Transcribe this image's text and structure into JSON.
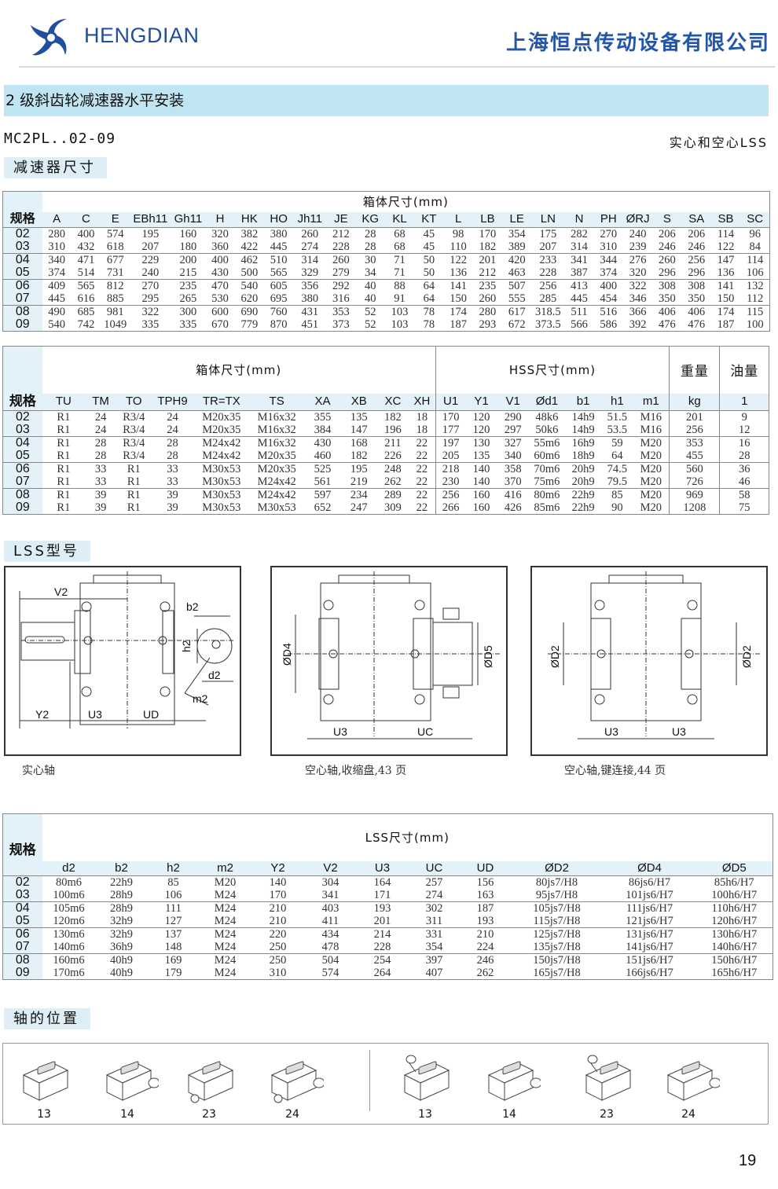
{
  "header": {
    "brand": "HENGDIAN",
    "company": "上海恒点传动设备有限公司",
    "logo_color": "#1f4f9e"
  },
  "section_title": "2 级斜齿轮减速器水平安装",
  "model": "MC2PL..02-09",
  "shaft_type": "实心和空心LSS",
  "tag_dims": "减速器尺寸",
  "tag_lss": "LSS型号",
  "tag_pos": "轴的位置",
  "table1": {
    "spec_label": "规格",
    "group": "箱体尺寸(mm)",
    "columns": [
      "A",
      "C",
      "E",
      "EBh11",
      "Gh11",
      "H",
      "HK",
      "HO",
      "Jh11",
      "JE",
      "KG",
      "KL",
      "KT",
      "L",
      "LB",
      "LE",
      "LN",
      "N",
      "PH",
      "ØRJ",
      "S",
      "SA",
      "SB",
      "SC"
    ],
    "rows": [
      [
        "02",
        "280",
        "400",
        "574",
        "195",
        "160",
        "320",
        "382",
        "380",
        "260",
        "212",
        "28",
        "68",
        "45",
        "98",
        "170",
        "354",
        "175",
        "282",
        "270",
        "240",
        "206",
        "206",
        "114",
        "96"
      ],
      [
        "03",
        "310",
        "432",
        "618",
        "207",
        "180",
        "360",
        "422",
        "445",
        "274",
        "228",
        "28",
        "68",
        "45",
        "110",
        "182",
        "389",
        "207",
        "314",
        "310",
        "239",
        "246",
        "246",
        "122",
        "84"
      ],
      [
        "04",
        "340",
        "471",
        "677",
        "229",
        "200",
        "400",
        "462",
        "510",
        "314",
        "260",
        "30",
        "71",
        "50",
        "122",
        "201",
        "420",
        "233",
        "341",
        "344",
        "276",
        "260",
        "256",
        "147",
        "114"
      ],
      [
        "05",
        "374",
        "514",
        "731",
        "240",
        "215",
        "430",
        "500",
        "565",
        "329",
        "279",
        "34",
        "71",
        "50",
        "136",
        "212",
        "463",
        "228",
        "387",
        "374",
        "320",
        "296",
        "296",
        "136",
        "106"
      ],
      [
        "06",
        "409",
        "565",
        "812",
        "270",
        "235",
        "470",
        "540",
        "605",
        "356",
        "292",
        "40",
        "88",
        "64",
        "141",
        "235",
        "507",
        "256",
        "413",
        "400",
        "322",
        "308",
        "308",
        "141",
        "132"
      ],
      [
        "07",
        "445",
        "616",
        "885",
        "295",
        "265",
        "530",
        "620",
        "695",
        "380",
        "316",
        "40",
        "91",
        "64",
        "150",
        "260",
        "555",
        "285",
        "445",
        "454",
        "346",
        "350",
        "350",
        "150",
        "112"
      ],
      [
        "08",
        "490",
        "685",
        "981",
        "322",
        "300",
        "600",
        "690",
        "760",
        "431",
        "353",
        "52",
        "103",
        "78",
        "174",
        "280",
        "617",
        "318.5",
        "511",
        "516",
        "366",
        "406",
        "406",
        "174",
        "115"
      ],
      [
        "09",
        "540",
        "742",
        "1049",
        "335",
        "335",
        "670",
        "779",
        "870",
        "451",
        "373",
        "52",
        "103",
        "78",
        "187",
        "293",
        "672",
        "373.5",
        "566",
        "586",
        "392",
        "476",
        "476",
        "187",
        "100"
      ]
    ]
  },
  "table2": {
    "spec_label": "规格",
    "groups": [
      {
        "label": "箱体尺寸(mm)",
        "span": 10
      },
      {
        "label": "HSS尺寸(mm)",
        "span": 7
      },
      {
        "label": "重量",
        "span": 1
      },
      {
        "label": "油量",
        "span": 1
      }
    ],
    "columns": [
      "TU",
      "TM",
      "TO",
      "TPH9",
      "TR=TX",
      "TS",
      "XA",
      "XB",
      "XC",
      "XH",
      "U1",
      "Y1",
      "V1",
      "Ød1",
      "b1",
      "h1",
      "m1",
      "kg",
      "1"
    ],
    "rows": [
      [
        "02",
        "R1",
        "24",
        "R3/4",
        "24",
        "M20x35",
        "M16x32",
        "355",
        "135",
        "182",
        "18",
        "170",
        "120",
        "290",
        "48k6",
        "14h9",
        "51.5",
        "M16",
        "201",
        "9"
      ],
      [
        "03",
        "R1",
        "24",
        "R3/4",
        "24",
        "M20x35",
        "M16x32",
        "384",
        "147",
        "196",
        "18",
        "177",
        "120",
        "297",
        "50k6",
        "14h9",
        "53.5",
        "M16",
        "256",
        "12"
      ],
      [
        "04",
        "R1",
        "28",
        "R3/4",
        "28",
        "M24x42",
        "M16x32",
        "430",
        "168",
        "211",
        "22",
        "197",
        "130",
        "327",
        "55m6",
        "16h9",
        "59",
        "M20",
        "353",
        "16"
      ],
      [
        "05",
        "R1",
        "28",
        "R3/4",
        "28",
        "M24x42",
        "M20x35",
        "460",
        "182",
        "226",
        "22",
        "205",
        "135",
        "340",
        "60m6",
        "18h9",
        "64",
        "M20",
        "455",
        "28"
      ],
      [
        "06",
        "R1",
        "33",
        "R1",
        "33",
        "M30x53",
        "M20x35",
        "525",
        "195",
        "248",
        "22",
        "218",
        "140",
        "358",
        "70m6",
        "20h9",
        "74.5",
        "M20",
        "560",
        "36"
      ],
      [
        "07",
        "R1",
        "33",
        "R1",
        "33",
        "M30x53",
        "M24x42",
        "561",
        "219",
        "262",
        "22",
        "230",
        "140",
        "370",
        "75m6",
        "20h9",
        "79.5",
        "M20",
        "726",
        "46"
      ],
      [
        "08",
        "R1",
        "39",
        "R1",
        "39",
        "M30x53",
        "M24x42",
        "597",
        "234",
        "289",
        "22",
        "256",
        "160",
        "416",
        "80m6",
        "22h9",
        "85",
        "M20",
        "969",
        "58"
      ],
      [
        "09",
        "R1",
        "39",
        "R1",
        "39",
        "M30x53",
        "M30x53",
        "652",
        "247",
        "309",
        "22",
        "266",
        "160",
        "426",
        "85m6",
        "22h9",
        "90",
        "M20",
        "1208",
        "75"
      ]
    ]
  },
  "drawings": [
    {
      "caption": "实心轴",
      "labels": [
        "V2",
        "b2",
        "h2",
        "d2",
        "m2",
        "Y2",
        "U3",
        "UD"
      ]
    },
    {
      "caption": "空心轴,收缩盘,43 页",
      "labels": [
        "ØD4",
        "ØD5",
        "U3",
        "UC"
      ]
    },
    {
      "caption": "空心轴,键连接,44 页",
      "labels": [
        "ØD2",
        "ØD2",
        "U3",
        "U3"
      ]
    }
  ],
  "table3": {
    "spec_label": "规格",
    "group": "LSS尺寸(mm)",
    "columns": [
      "d2",
      "b2",
      "h2",
      "m2",
      "Y2",
      "V2",
      "U3",
      "UC",
      "UD",
      "ØD2",
      "ØD4",
      "ØD5"
    ],
    "rows": [
      [
        "02",
        "80m6",
        "22h9",
        "85",
        "M20",
        "140",
        "304",
        "164",
        "257",
        "156",
        "80js7/H8",
        "86js6/H7",
        "85h6/H7"
      ],
      [
        "03",
        "100m6",
        "28h9",
        "106",
        "M24",
        "170",
        "341",
        "171",
        "274",
        "163",
        "95js7/H8",
        "101js6/H7",
        "100h6/H7"
      ],
      [
        "04",
        "105m6",
        "28h9",
        "111",
        "M24",
        "210",
        "403",
        "193",
        "302",
        "187",
        "105js7/H8",
        "111js6/H7",
        "110h6/H7"
      ],
      [
        "05",
        "120m6",
        "32h9",
        "127",
        "M24",
        "210",
        "411",
        "201",
        "311",
        "193",
        "115js7/H8",
        "121js6/H7",
        "120h6/H7"
      ],
      [
        "06",
        "130m6",
        "32h9",
        "137",
        "M24",
        "220",
        "434",
        "214",
        "331",
        "210",
        "125js7/H8",
        "131js6/H7",
        "130h6/H7"
      ],
      [
        "07",
        "140m6",
        "36h9",
        "148",
        "M24",
        "250",
        "478",
        "228",
        "354",
        "224",
        "135js7/H8",
        "141js6/H7",
        "140h6/H7"
      ],
      [
        "08",
        "160m6",
        "40h9",
        "169",
        "M24",
        "250",
        "504",
        "254",
        "397",
        "246",
        "150js7/H8",
        "151js6/H7",
        "150h6/H7"
      ],
      [
        "09",
        "170m6",
        "40h9",
        "179",
        "M24",
        "310",
        "574",
        "264",
        "407",
        "262",
        "165js7/H8",
        "166js6/H7",
        "165h6/H7"
      ]
    ]
  },
  "positions": [
    "13",
    "14",
    "23",
    "24",
    "13",
    "14",
    "23",
    "24"
  ],
  "page_number": "19"
}
